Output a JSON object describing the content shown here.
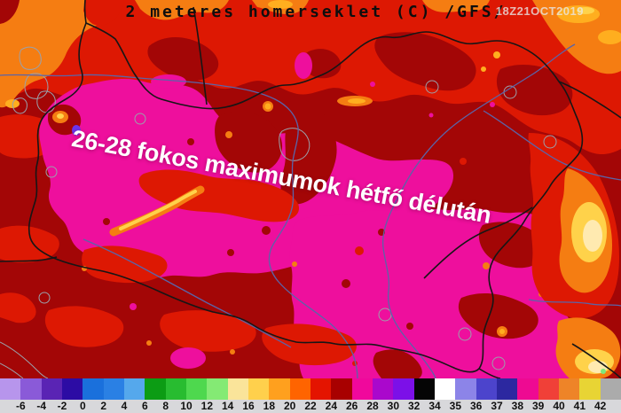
{
  "header": {
    "title": "2 meteres homerseklet (C) /GFS/",
    "run_stamp": "18Z21OCT2019"
  },
  "annotation": {
    "text": "26-28 fokos maximumok hétfő délután"
  },
  "legend": {
    "labels": [
      "-6",
      "-4",
      "-2",
      "0",
      "2",
      "4",
      "6",
      "8",
      "10",
      "12",
      "14",
      "16",
      "18",
      "20",
      "22",
      "24",
      "26",
      "28",
      "30",
      "32",
      "34",
      "35",
      "36",
      "37",
      "38",
      "39",
      "40",
      "41",
      "42"
    ],
    "segment_colors": [
      "#b795ec",
      "#8a5ad8",
      "#5a24b4",
      "#2c0ca4",
      "#1a70dc",
      "#2a80e4",
      "#55a8ec",
      "#0c9c14",
      "#28bc30",
      "#4ed84e",
      "#84ea74",
      "#fae49a",
      "#ffd04c",
      "#ffa01e",
      "#ff6400",
      "#e41400",
      "#a80000",
      "#f0089c",
      "#aa08cc",
      "#7c10e8",
      "#050505",
      "#ffffff",
      "#8c84e8",
      "#4c44cc",
      "#2c28a0",
      "#ee0a92",
      "#f04038",
      "#ee8428",
      "#e8d434",
      "#ababab"
    ]
  },
  "map_colors": {
    "darkred": "#a30606",
    "red": "#dd1803",
    "orange": "#f57d12",
    "orangeb": "#ffae1f",
    "yellow": "#ffd24a",
    "paleyellow": "#ffeab0",
    "magenta": "#ee0f9d",
    "violet": "#6a34ea",
    "green": "#7de87e",
    "border": "#161616",
    "river": "#5b64a8",
    "minor": "#9ba1ab",
    "stripbg": "#d8d8db",
    "title": "#0e0e0e",
    "stamp": "#e8e8e8",
    "annotation": "#ffffff"
  }
}
